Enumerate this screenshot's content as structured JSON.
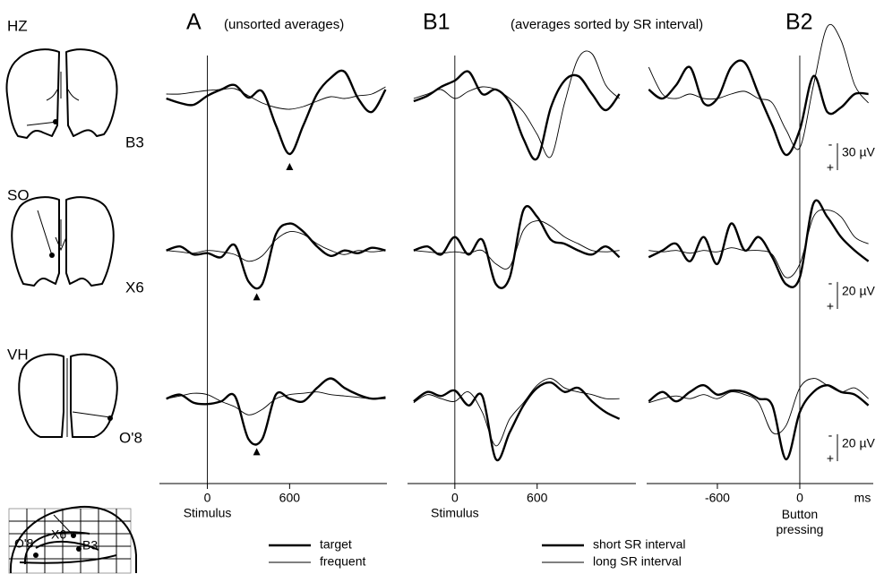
{
  "subjects": [
    {
      "name": "HZ",
      "electrode": "B3"
    },
    {
      "name": "SO",
      "electrode": "X6"
    },
    {
      "name": "VH",
      "electrode": "O'8"
    }
  ],
  "sagittal_labels": [
    "O'8",
    "X6",
    "B3"
  ],
  "chart_data": [
    {
      "type": "line",
      "title": "A",
      "subtitle": "(unsorted averages)",
      "xlabel": "Stimulus",
      "xlim": [
        -350,
        1310
      ],
      "xticks": [
        0,
        600
      ],
      "x": [
        -300,
        -200,
        -100,
        0,
        100,
        200,
        300,
        400,
        500,
        600,
        700,
        800,
        900,
        1000,
        1100,
        1200,
        1300
      ],
      "series": [
        {
          "name": "target",
          "color": "#000000",
          "width": 2.4
        },
        {
          "name": "frequent",
          "color": "#000000",
          "width": 0.9
        }
      ],
      "panels": [
        {
          "ylim": [
            -45,
            95
          ],
          "marker": 600,
          "values": [
            [
              5,
              10,
              12,
              2,
              -5,
              -10,
              4,
              -3,
              35,
              67,
              35,
              0,
              -18,
              -25,
              5,
              20,
              -5
            ],
            [
              0,
              0,
              -2,
              -4,
              -5,
              -6,
              2,
              10,
              15,
              17,
              14,
              8,
              3,
              5,
              2,
              0,
              -8
            ]
          ]
        },
        {
          "ylim": [
            -43,
            50
          ],
          "marker": 360,
          "values": [
            [
              0,
              -3,
              3,
              2,
              5,
              -4,
              23,
              25,
              -12,
              -20,
              -14,
              -3,
              4,
              0,
              2,
              -2,
              0
            ],
            [
              0,
              1,
              2,
              0,
              1,
              3,
              8,
              4,
              -8,
              -14,
              -12,
              -5,
              0,
              3,
              0,
              1,
              0
            ]
          ]
        },
        {
          "ylim": [
            -40,
            53
          ],
          "marker": 360,
          "values": [
            [
              0,
              -3,
              3,
              4,
              2,
              -2,
              30,
              30,
              -3,
              0,
              2,
              -8,
              -15,
              -8,
              -3,
              0,
              -1
            ],
            [
              0,
              -2,
              -4,
              -3,
              2,
              6,
              12,
              8,
              0,
              -3,
              -4,
              -5,
              -3,
              -2,
              -1,
              0,
              0
            ]
          ]
        }
      ]
    },
    {
      "type": "line",
      "subtitle": "(averages sorted by SR interval)",
      "series": [
        {
          "name": "short SR interval",
          "color": "#000000",
          "width": 2.4
        },
        {
          "name": "long SR interval",
          "color": "#000000",
          "width": 0.9
        }
      ],
      "columns": [
        {
          "title": "B1",
          "xlabel": "Stimulus",
          "xlim": [
            -345,
            1320
          ],
          "xticks": [
            0,
            600
          ],
          "x": [
            -300,
            -200,
            -100,
            0,
            100,
            200,
            300,
            400,
            500,
            600,
            700,
            800,
            900,
            1000,
            1100,
            1200
          ],
          "panels": [
            {
              "ylim": [
                -45,
                95
              ],
              "values": [
                [
                  8,
                  2,
                  -8,
                  -15,
                  -25,
                  0,
                  -5,
                  10,
                  50,
                  72,
                  15,
                  -15,
                  -20,
                  0,
                  18,
                  0
                ],
                [
                  5,
                  0,
                  -5,
                  5,
                  -3,
                  -8,
                  -5,
                  5,
                  20,
                  45,
                  70,
                  10,
                  -40,
                  -45,
                  -10,
                  5
                ]
              ]
            },
            {
              "ylim": [
                -43,
                50
              ],
              "values": [
                [
                  0,
                  -3,
                  3,
                  -10,
                  3,
                  -8,
                  25,
                  20,
                  -30,
                  -25,
                  -8,
                  -5,
                  0,
                  3,
                  -3,
                  5
                ],
                [
                  0,
                  1,
                  2,
                  1,
                  2,
                  0,
                  10,
                  12,
                  -15,
                  -22,
                  -18,
                  -10,
                  -5,
                  0,
                  1,
                  0
                ]
              ]
            },
            {
              "ylim": [
                -40,
                53
              ],
              "values": [
                [
                  2,
                  -5,
                  -2,
                  -6,
                  5,
                  -2,
                  45,
                  25,
                  5,
                  -8,
                  -12,
                  -5,
                  -8,
                  2,
                  10,
                  15
                ],
                [
                  3,
                  -3,
                  0,
                  2,
                  -5,
                  10,
                  35,
                  15,
                  3,
                  -10,
                  -15,
                  -8,
                  -5,
                  -3,
                  0,
                  0
                ]
              ]
            }
          ]
        },
        {
          "title": "B2",
          "xlabel": "Button pressing",
          "x_unit": "ms",
          "xlim": [
            -1115,
            535
          ],
          "xticks": [
            -600,
            0
          ],
          "x": [
            -1100,
            -1000,
            -900,
            -800,
            -700,
            -600,
            -500,
            -400,
            -300,
            -200,
            -100,
            0,
            100,
            200,
            300,
            400,
            500
          ],
          "panels": [
            {
              "ylim": [
                -45,
                95
              ],
              "scale_bar": {
                "value": 30,
                "label": "30 µV",
                "polarity": [
                  "-",
                  "+"
                ]
              },
              "values": [
                [
                  -5,
                  5,
                  -10,
                  -30,
                  10,
                  5,
                  -30,
                  -35,
                  0,
                  35,
                  68,
                  40,
                  -20,
                  20,
                  15,
                  0,
                  0
                ],
                [
                  -30,
                  0,
                  5,
                  0,
                  5,
                  5,
                  0,
                  -3,
                  5,
                  10,
                  40,
                  60,
                  -10,
                  -75,
                  -60,
                  -10,
                  10
                ]
              ]
            },
            {
              "ylim": [
                -43,
                50
              ],
              "scale_bar": {
                "value": 20,
                "label": "20 µV",
                "polarity": [
                  "-",
                  "+"
                ]
              },
              "values": [
                [
                  5,
                  0,
                  -5,
                  8,
                  -10,
                  10,
                  -20,
                  0,
                  -10,
                  5,
                  25,
                  20,
                  -35,
                  -25,
                  -10,
                  0,
                  8
                ],
                [
                  0,
                  1,
                  0,
                  2,
                  0,
                  1,
                  -2,
                  0,
                  0,
                  3,
                  20,
                  10,
                  -25,
                  -30,
                  -25,
                  -10,
                  -5
                ]
              ]
            },
            {
              "ylim": [
                -40,
                53
              ],
              "scale_bar": {
                "value": 20,
                "label": "20 µV",
                "polarity": [
                  "-",
                  "+"
                ]
              },
              "values": [
                [
                  2,
                  -5,
                  2,
                  -5,
                  -10,
                  -3,
                  -6,
                  -5,
                  0,
                  5,
                  45,
                  10,
                  -5,
                  -10,
                  -5,
                  -3,
                  5
                ],
                [
                  3,
                  0,
                  -2,
                  0,
                  -3,
                  0,
                  -5,
                  -3,
                  3,
                  25,
                  20,
                  -8,
                  -15,
                  -10,
                  -5,
                  -8,
                  0
                ]
              ]
            }
          ]
        }
      ]
    }
  ]
}
